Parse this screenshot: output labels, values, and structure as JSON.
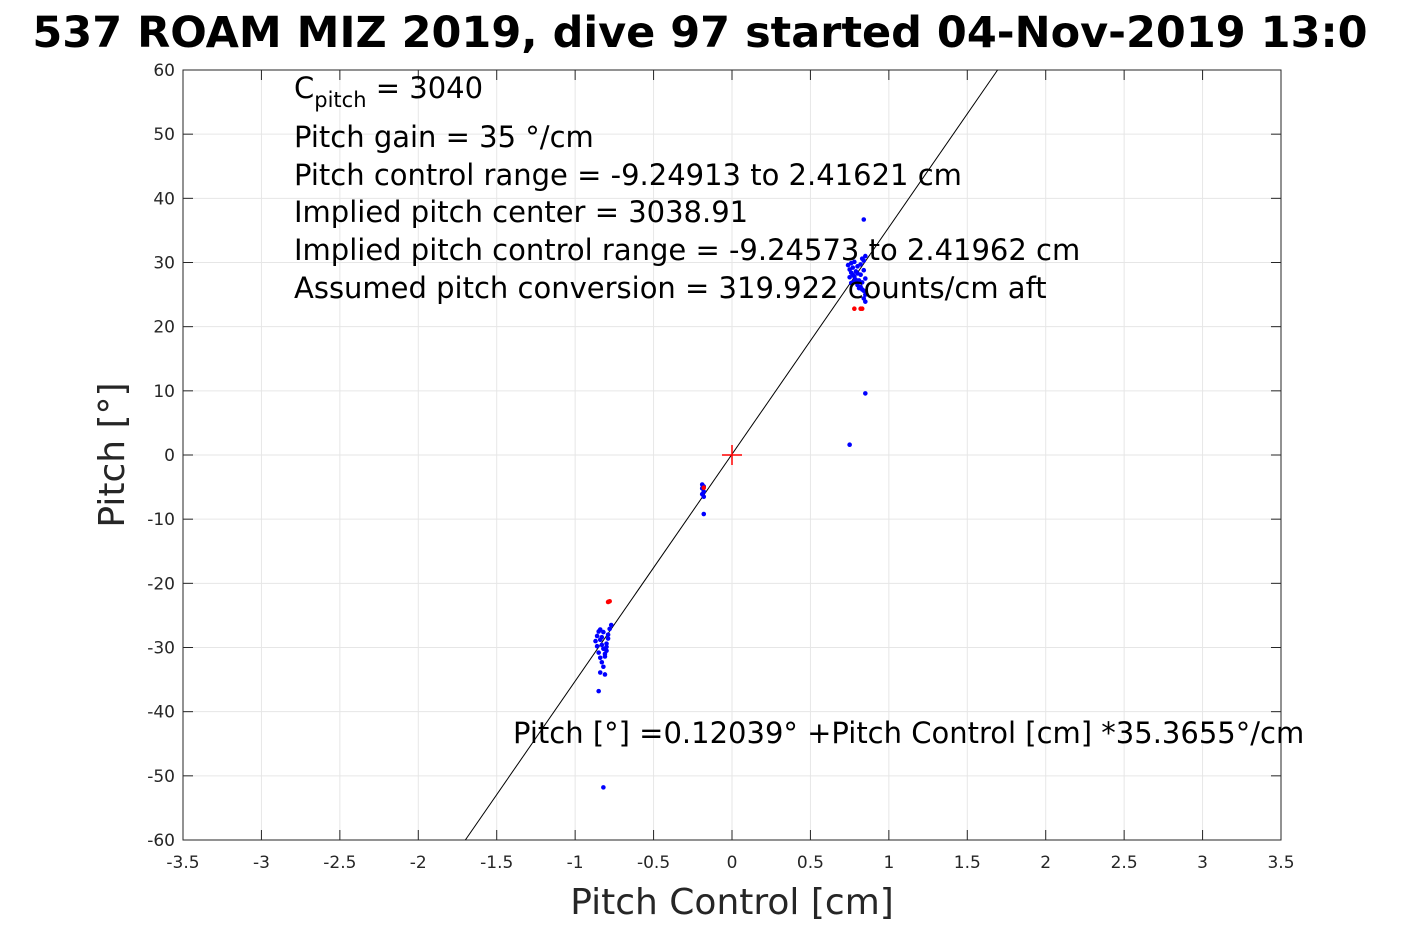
{
  "chart_data": {
    "type": "scatter",
    "title": "537 ROAM MIZ 2019, dive 97 started 04-Nov-2019 13:0",
    "xlabel": "Pitch Control [cm]",
    "ylabel": "Pitch [°]",
    "xlim": [
      -3.5,
      3.5
    ],
    "ylim": [
      -60,
      60
    ],
    "xticks": [
      -3.5,
      -3,
      -2.5,
      -2,
      -1.5,
      -1,
      -0.5,
      0,
      0.5,
      1,
      1.5,
      2,
      2.5,
      3,
      3.5
    ],
    "xtick_labels": [
      "-3.5",
      "-3",
      "-2.5",
      "-2",
      "-1.5",
      "-1",
      "-0.5",
      "0",
      "0.5",
      "1",
      "1.5",
      "2",
      "2.5",
      "3",
      "3.5"
    ],
    "yticks": [
      -60,
      -50,
      -40,
      -30,
      -20,
      -10,
      0,
      10,
      20,
      30,
      40,
      50,
      60
    ],
    "ytick_labels": [
      "-60",
      "-50",
      "-40",
      "-30",
      "-20",
      "-10",
      "0",
      "10",
      "20",
      "30",
      "40",
      "50",
      "60"
    ],
    "grid": true,
    "fit_line": {
      "intercept": 0.12039,
      "slope": 35.3655
    },
    "center_marker": {
      "x": 0,
      "y": 0,
      "color": "#ff0000"
    },
    "series": [
      {
        "color": "#0000ff",
        "points": [
          [
            0.74,
            29.6
          ],
          [
            0.75,
            28.9
          ],
          [
            0.76,
            28.4
          ],
          [
            0.77,
            29.2
          ],
          [
            0.78,
            27.8
          ],
          [
            0.79,
            28.6
          ],
          [
            0.8,
            29.4
          ],
          [
            0.81,
            27.2
          ],
          [
            0.82,
            28.1
          ],
          [
            0.83,
            26.9
          ],
          [
            0.84,
            28.8
          ],
          [
            0.85,
            27.5
          ],
          [
            0.76,
            26.8
          ],
          [
            0.78,
            27.1
          ],
          [
            0.8,
            26.5
          ],
          [
            0.82,
            26.2
          ],
          [
            0.84,
            25.6
          ],
          [
            0.85,
            25.0
          ],
          [
            0.84,
            24.4
          ],
          [
            0.85,
            23.9
          ],
          [
            0.83,
            25.8
          ],
          [
            0.81,
            26.0
          ],
          [
            0.79,
            27.3
          ],
          [
            0.77,
            28.1
          ],
          [
            0.75,
            27.7
          ],
          [
            0.8,
            28.3
          ],
          [
            0.82,
            29.7
          ],
          [
            0.84,
            30.3
          ],
          [
            0.85,
            31.0
          ],
          [
            0.83,
            30.6
          ],
          [
            0.78,
            30.1
          ],
          [
            0.76,
            29.9
          ],
          [
            0.84,
            36.7
          ],
          [
            0.85,
            9.6
          ],
          [
            0.75,
            1.6
          ],
          [
            -0.19,
            -4.6
          ],
          [
            -0.19,
            -5.2
          ],
          [
            -0.18,
            -5.7
          ],
          [
            -0.19,
            -6.1
          ],
          [
            -0.18,
            -6.5
          ],
          [
            -0.18,
            -4.9
          ],
          [
            -0.18,
            -9.2
          ],
          [
            -0.87,
            -29.0
          ],
          [
            -0.86,
            -28.2
          ],
          [
            -0.85,
            -27.5
          ],
          [
            -0.84,
            -28.8
          ],
          [
            -0.83,
            -29.6
          ],
          [
            -0.82,
            -30.2
          ],
          [
            -0.81,
            -31.0
          ],
          [
            -0.8,
            -29.4
          ],
          [
            -0.79,
            -28.0
          ],
          [
            -0.78,
            -27.1
          ],
          [
            -0.77,
            -26.5
          ],
          [
            -0.85,
            -30.8
          ],
          [
            -0.84,
            -31.6
          ],
          [
            -0.83,
            -32.3
          ],
          [
            -0.82,
            -33.0
          ],
          [
            -0.81,
            -31.4
          ],
          [
            -0.8,
            -30.5
          ],
          [
            -0.86,
            -29.8
          ],
          [
            -0.84,
            -33.9
          ],
          [
            -0.81,
            -34.2
          ],
          [
            -0.85,
            -36.8
          ],
          [
            -0.8,
            -29.9
          ],
          [
            -0.79,
            -28.6
          ],
          [
            -0.82,
            -27.6
          ],
          [
            -0.83,
            -28.4
          ],
          [
            -0.84,
            -27.2
          ],
          [
            -0.82,
            -51.8
          ]
        ]
      },
      {
        "color": "#ff0000",
        "points": [
          [
            0.78,
            22.8
          ],
          [
            0.82,
            22.8
          ],
          [
            0.83,
            22.8
          ],
          [
            -0.78,
            -22.8
          ],
          [
            -0.79,
            -22.9
          ],
          [
            -0.18,
            -5.1
          ]
        ]
      }
    ],
    "annotations": [
      {
        "text": "C",
        "sub": "pitch",
        "after": " = 3040"
      },
      {
        "text": "Pitch gain = 35 °/cm"
      },
      {
        "text": "Pitch control range = -9.24913 to 2.41621 cm"
      },
      {
        "text": "Implied pitch center = 3038.91"
      },
      {
        "text": "Implied pitch control range = -9.24573 to 2.41962 cm"
      },
      {
        "text": "Assumed pitch conversion = 319.922 counts/cm aft"
      }
    ],
    "fit_label": "Pitch [°] =0.12039° +Pitch Control [cm] *35.3655°/cm"
  }
}
